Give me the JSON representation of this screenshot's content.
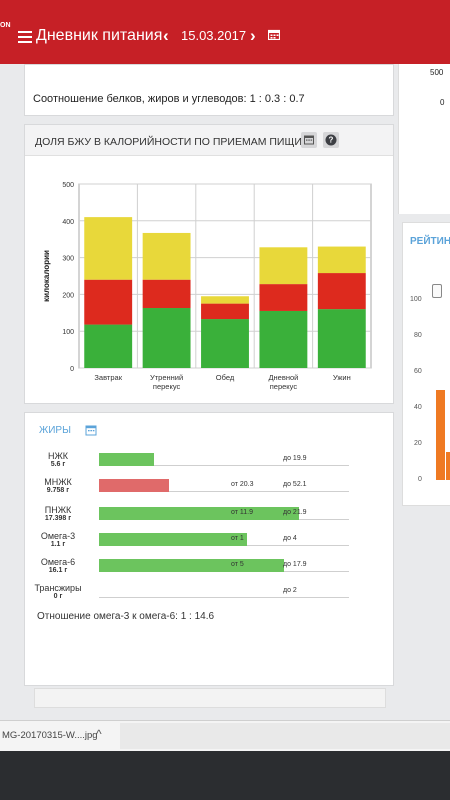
{
  "header": {
    "brand": "ON",
    "app_title": "Дневник питания",
    "date": "15.03.2017",
    "prev_icon": "chevron-left-icon",
    "next_icon": "chevron-right-icon",
    "calendar_icon": "calendar-icon",
    "accent_color": "#c62026"
  },
  "right_panel": {
    "top_values": [
      "500",
      "0"
    ],
    "tab_label": "РЕЙТИН",
    "y_ticks": [
      "100",
      "80",
      "60",
      "40",
      "20",
      "0"
    ]
  },
  "ratio": {
    "text": "Соотношение белков, жиров и углеводов: 1 : 0.3 : 0.7"
  },
  "chart_card": {
    "title": "ДОЛЯ БЖУ В КАЛОРИЙНОСТИ ПО ПРИЕМАМ ПИЩИ",
    "calendar_icon": "calendar-icon",
    "help_icon": "question-icon"
  },
  "chart_data": {
    "type": "bar",
    "stacked": true,
    "categories": [
      "Завтрак",
      "Утренний перекус",
      "Обед",
      "Дневной перекус",
      "Ужин"
    ],
    "series": [
      {
        "color": "#3ab03a",
        "values": [
          118,
          163,
          133,
          155,
          160
        ]
      },
      {
        "color": "#dd2a1e",
        "values": [
          122,
          77,
          42,
          73,
          98
        ]
      },
      {
        "color": "#e8d83a",
        "values": [
          170,
          127,
          20,
          100,
          72
        ]
      }
    ],
    "ylabel": "килокалории",
    "ylim": [
      0,
      500
    ],
    "yticks": [
      0,
      100,
      200,
      300,
      400,
      500
    ],
    "grid": true
  },
  "fats": {
    "title": "ЖИРЫ",
    "calendar_icon": "calendar-icon",
    "rows": [
      {
        "name": "НЖК",
        "amount": "5.6 г",
        "lo": "",
        "hi": "до 19.9",
        "fill": 0.22,
        "color": "#6cc45e"
      },
      {
        "name": "МНЖК",
        "amount": "9.758 г",
        "lo": "от 20.3",
        "hi": "до 52.1",
        "fill": 0.28,
        "color": "#e06a6a"
      },
      {
        "name": "ПНЖК",
        "amount": "17.398 г",
        "lo": "от 11.9",
        "hi": "до 21.9",
        "fill": 0.8,
        "color": "#6cc45e"
      },
      {
        "name": "Омега-3",
        "amount": "1.1 г",
        "lo": "от 1",
        "hi": "до 4",
        "fill": 0.59,
        "color": "#6cc45e"
      },
      {
        "name": "Омега-6",
        "amount": "16.1 г",
        "lo": "от 5",
        "hi": "до 17.9",
        "fill": 0.74,
        "color": "#6cc45e"
      },
      {
        "name": "Трансжиры",
        "amount": "0 г",
        "lo": "",
        "hi": "до 2",
        "fill": 0,
        "color": "#6cc45e"
      }
    ],
    "omega_ratio": "Отношение омега-3 к омега-6: 1 : 14.6"
  },
  "downloads": {
    "file_name": "MG-20170315-W....jpg",
    "arrow": "^"
  }
}
